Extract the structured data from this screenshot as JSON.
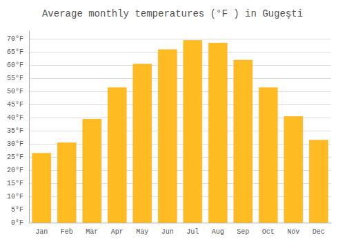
{
  "chart_data": {
    "type": "bar",
    "title": "Average monthly temperatures (°F ) in Gugeşti",
    "categories": [
      "Jan",
      "Feb",
      "Mar",
      "Apr",
      "May",
      "Jun",
      "Jul",
      "Aug",
      "Sep",
      "Oct",
      "Nov",
      "Dec"
    ],
    "values": [
      26.5,
      30.5,
      39.5,
      51.5,
      60.5,
      66.0,
      69.5,
      68.5,
      62.0,
      51.5,
      40.5,
      31.5
    ],
    "color": "#FFBB22",
    "ylim": [
      0,
      73
    ],
    "yticks": [
      {
        "value": 0,
        "label": "0°F"
      },
      {
        "value": 5,
        "label": "5°F"
      },
      {
        "value": 10,
        "label": "10°F"
      },
      {
        "value": 15,
        "label": "15°F"
      },
      {
        "value": 20,
        "label": "20°F"
      },
      {
        "value": 25,
        "label": "25°F"
      },
      {
        "value": 30,
        "label": "30°F"
      },
      {
        "value": 35,
        "label": "35°F"
      },
      {
        "value": 40,
        "label": "40°F"
      },
      {
        "value": 45,
        "label": "45°F"
      },
      {
        "value": 50,
        "label": "50°F"
      },
      {
        "value": 55,
        "label": "55°F"
      },
      {
        "value": 60,
        "label": "60°F"
      },
      {
        "value": 65,
        "label": "65°F"
      },
      {
        "value": 70,
        "label": "70°F"
      }
    ],
    "grid": true
  }
}
